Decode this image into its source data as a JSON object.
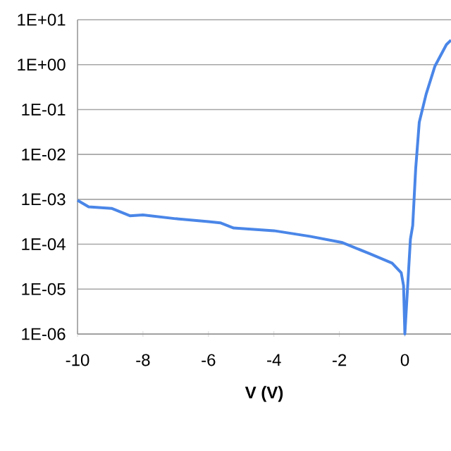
{
  "chart_data": {
    "type": "line",
    "xlabel": "V (V)",
    "log": true,
    "grid": "y",
    "color": "#4a86e8",
    "x": [
      -10,
      -9.66,
      -8.96,
      -8.4,
      -8.0,
      -7.0,
      -6.0,
      -5.64,
      -5.23,
      -4.0,
      -2.9,
      -1.93,
      -1.08,
      -0.39,
      -0.11,
      -0.04,
      0.0,
      0.17,
      0.24,
      0.33,
      0.44,
      0.65,
      0.92,
      1.27,
      1.41
    ],
    "values": [
      0.00095,
      0.00068,
      0.00063,
      0.00043,
      0.00045,
      0.00037,
      0.00032,
      0.0003,
      0.00023,
      0.0002,
      0.00015,
      0.00011,
      6.2e-05,
      3.8e-05,
      2.3e-05,
      1.2e-05,
      1e-06,
      0.00013,
      0.00026,
      0.0047,
      0.052,
      0.22,
      0.93,
      2.8,
      3.5
    ],
    "xlim": [
      -10,
      1.41
    ],
    "xticks": [
      -10,
      -8,
      -6,
      -4,
      -2,
      0
    ],
    "ylim": [
      1e-06,
      10
    ],
    "yticks": [
      {
        "value": 10,
        "label": "1E+01"
      },
      {
        "value": 1,
        "label": "1E+00"
      },
      {
        "value": 0.1,
        "label": "1E-01"
      },
      {
        "value": 0.01,
        "label": "1E-02"
      },
      {
        "value": 0.001,
        "label": "1E-03"
      },
      {
        "value": 0.0001,
        "label": "1E-04"
      },
      {
        "value": 1e-05,
        "label": "1E-05"
      },
      {
        "value": 1e-06,
        "label": "1E-06"
      }
    ]
  }
}
